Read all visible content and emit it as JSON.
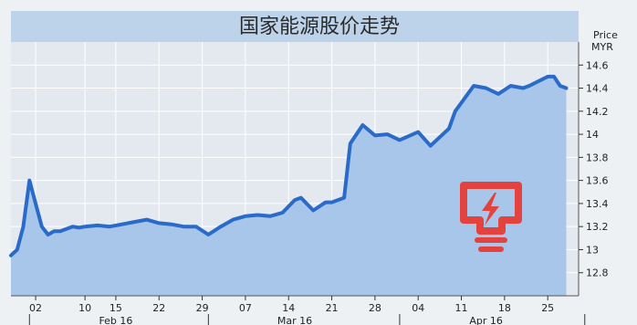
{
  "chart_data": {
    "type": "area",
    "title": "国家能源股价走势",
    "ylabel": "Price",
    "yunit": "MYR",
    "ylim": [
      12.6,
      14.8
    ],
    "yticks": [
      "14.6",
      "14.4",
      "14.2",
      "14",
      "13.8",
      "13.6",
      "13.4",
      "13.2",
      "13",
      "12.8"
    ],
    "ytick_values": [
      14.6,
      14.4,
      14.2,
      14.0,
      13.8,
      13.6,
      13.4,
      13.2,
      13.0,
      12.8
    ],
    "xticks": [
      "02",
      "10",
      "15",
      "22",
      "29",
      "07",
      "14",
      "21",
      "28",
      "04",
      "11",
      "18",
      "25"
    ],
    "xtick_dates": [
      "2016-02-02",
      "2016-02-10",
      "2016-02-15",
      "2016-02-22",
      "2016-02-29",
      "2016-03-07",
      "2016-03-14",
      "2016-03-21",
      "2016-03-28",
      "2016-04-04",
      "2016-04-11",
      "2016-04-18",
      "2016-04-25"
    ],
    "months": [
      "Feb 16",
      "Mar 16",
      "Apr 16"
    ],
    "month_dates": [
      "2016-02-15",
      "2016-03-15",
      "2016-04-15"
    ],
    "month_dividers": [
      "2016-02-01",
      "2016-03-01",
      "2016-04-01",
      "2016-05-01"
    ],
    "xlim": [
      "2016-01-29",
      "2016-04-30"
    ],
    "grid": true,
    "x": [
      "2016-01-29",
      "2016-01-30",
      "2016-01-31",
      "2016-02-01",
      "2016-02-02",
      "2016-02-03",
      "2016-02-04",
      "2016-02-05",
      "2016-02-06",
      "2016-02-07",
      "2016-02-08",
      "2016-02-09",
      "2016-02-10",
      "2016-02-12",
      "2016-02-14",
      "2016-02-16",
      "2016-02-18",
      "2016-02-20",
      "2016-02-22",
      "2016-02-24",
      "2016-02-26",
      "2016-02-28",
      "2016-03-01",
      "2016-03-03",
      "2016-03-05",
      "2016-03-07",
      "2016-03-09",
      "2016-03-11",
      "2016-03-13",
      "2016-03-15",
      "2016-03-16",
      "2016-03-18",
      "2016-03-20",
      "2016-03-21",
      "2016-03-23",
      "2016-03-24",
      "2016-03-26",
      "2016-03-28",
      "2016-03-30",
      "2016-04-01",
      "2016-04-04",
      "2016-04-06",
      "2016-04-09",
      "2016-04-10",
      "2016-04-13",
      "2016-04-15",
      "2016-04-17",
      "2016-04-19",
      "2016-04-21",
      "2016-04-22",
      "2016-04-25",
      "2016-04-26",
      "2016-04-27",
      "2016-04-28"
    ],
    "values": [
      12.95,
      13.0,
      13.2,
      13.6,
      13.4,
      13.2,
      13.13,
      13.16,
      13.16,
      13.18,
      13.2,
      13.19,
      13.2,
      13.21,
      13.2,
      13.22,
      13.24,
      13.26,
      13.23,
      13.22,
      13.2,
      13.2,
      13.13,
      13.2,
      13.26,
      13.29,
      13.3,
      13.29,
      13.32,
      13.43,
      13.45,
      13.34,
      13.41,
      13.41,
      13.45,
      13.92,
      14.08,
      13.99,
      14.0,
      13.95,
      14.02,
      13.9,
      14.05,
      14.2,
      14.42,
      14.4,
      14.35,
      14.42,
      14.4,
      14.42,
      14.5,
      14.5,
      14.42,
      14.4
    ]
  }
}
